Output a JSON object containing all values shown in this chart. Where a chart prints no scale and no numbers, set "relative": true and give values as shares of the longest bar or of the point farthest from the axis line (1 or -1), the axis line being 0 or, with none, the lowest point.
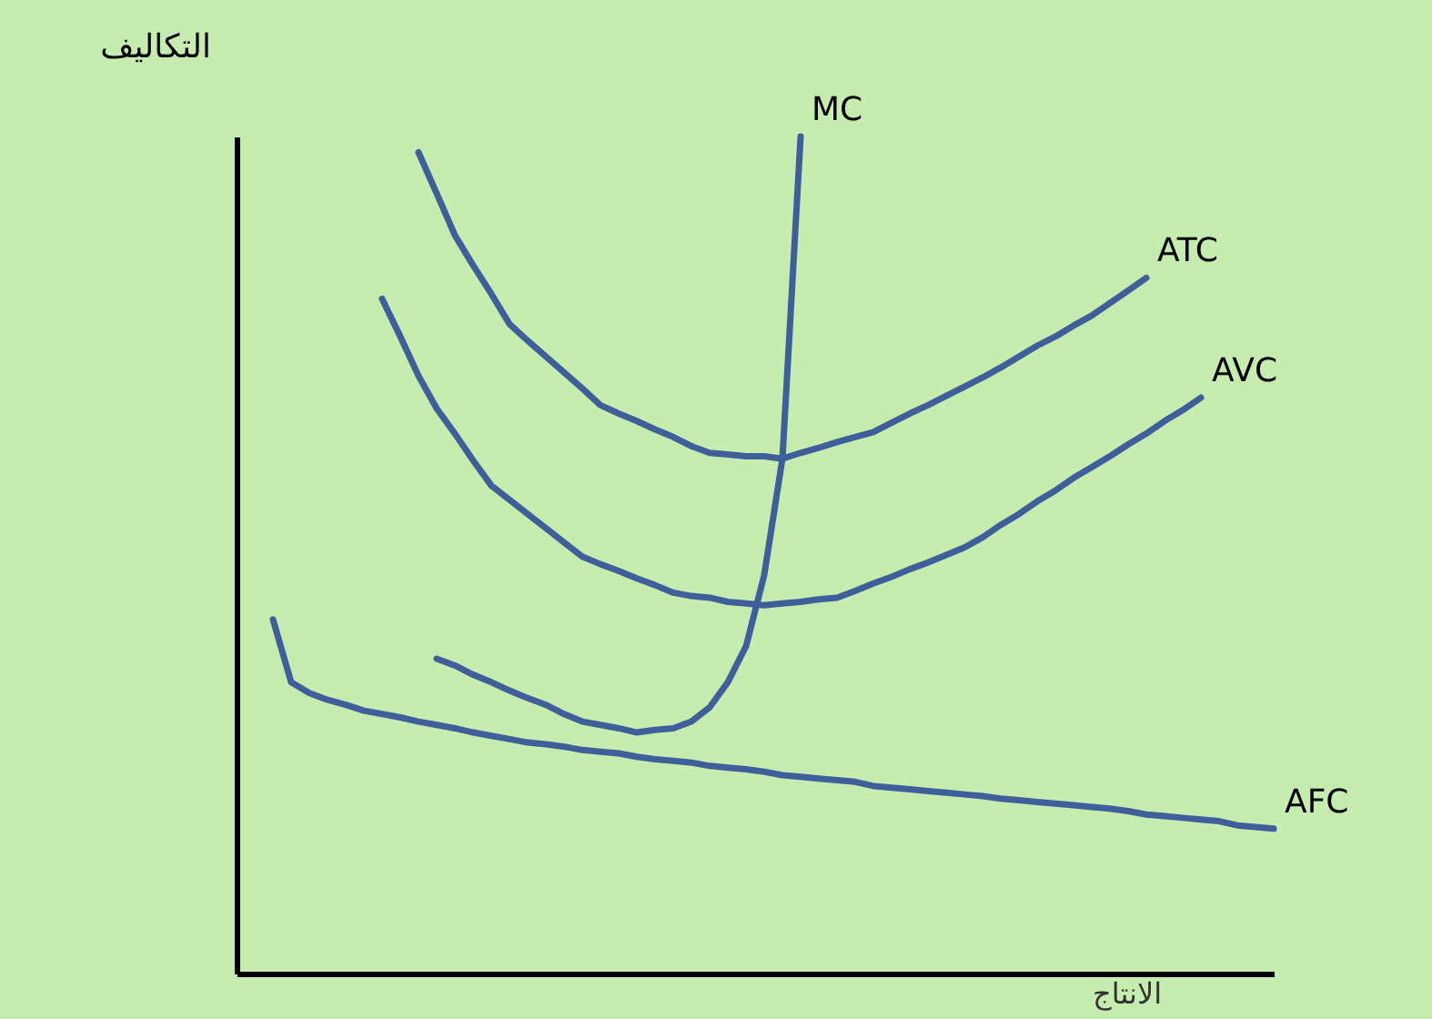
{
  "chart_data": {
    "type": "line",
    "relative": true,
    "xlabel": "الانتاج",
    "ylabel": "التكاليف",
    "legend": false,
    "grid": false,
    "marker": "none",
    "line_style": "solid",
    "categories": [
      null,
      null,
      null,
      null,
      null,
      null,
      null,
      null,
      null,
      null,
      null,
      null,
      null,
      null,
      null,
      null,
      null,
      null,
      null,
      null,
      null,
      null,
      null,
      null,
      null,
      null,
      null,
      null,
      null,
      null,
      null,
      null,
      null,
      null,
      null,
      null,
      null,
      null,
      null,
      null,
      null,
      null,
      null,
      null,
      null,
      null,
      null,
      null,
      null,
      null,
      null,
      null,
      null,
      null,
      null,
      null,
      null,
      null
    ],
    "series": [
      {
        "name": "MC",
        "color": "#3f5f9a",
        "values": [
          null,
          null,
          null,
          null,
          null,
          null,
          null,
          null,
          null,
          null,
          null,
          0.376,
          0.368,
          0.357,
          0.348,
          0.338,
          0.329,
          0.321,
          0.31,
          0.301,
          0.297,
          0.293,
          0.288,
          0.291,
          0.293,
          0.301,
          0.318,
          0.348,
          0.391,
          0.476,
          0.615,
          1.0,
          null,
          null,
          null,
          null,
          null,
          null,
          null,
          null,
          null,
          null,
          null,
          null,
          null,
          null,
          null,
          null,
          null,
          null,
          null,
          null,
          null,
          null,
          null,
          null,
          null,
          null
        ]
      },
      {
        "name": "ATC",
        "color": "#3f5f9a",
        "values": [
          null,
          null,
          null,
          null,
          null,
          null,
          null,
          null,
          null,
          null,
          0.981,
          0.932,
          0.882,
          0.846,
          0.812,
          0.776,
          0.756,
          0.737,
          0.718,
          0.699,
          0.679,
          0.669,
          0.66,
          0.65,
          0.641,
          0.63,
          0.622,
          0.62,
          0.618,
          0.618,
          0.615,
          0.622,
          0.628,
          0.635,
          0.641,
          0.647,
          0.658,
          0.669,
          0.679,
          0.69,
          0.701,
          0.712,
          0.724,
          0.737,
          0.75,
          0.761,
          0.774,
          0.786,
          0.801,
          0.816,
          0.831,
          null,
          null,
          null,
          null,
          null,
          null,
          null
        ]
      },
      {
        "name": "AVC",
        "color": "#3f5f9a",
        "values": [
          null,
          null,
          null,
          null,
          null,
          null,
          null,
          null,
          0.806,
          0.761,
          0.714,
          0.675,
          0.645,
          0.613,
          0.583,
          0.566,
          0.549,
          0.532,
          0.515,
          0.498,
          0.489,
          0.481,
          0.472,
          0.464,
          0.455,
          0.451,
          0.449,
          0.444,
          0.442,
          0.44,
          0.442,
          0.444,
          0.447,
          0.449,
          0.457,
          0.466,
          0.474,
          0.483,
          0.491,
          0.5,
          0.509,
          0.521,
          0.536,
          0.549,
          0.564,
          0.577,
          0.592,
          0.605,
          0.618,
          0.632,
          0.645,
          0.66,
          0.673,
          0.688,
          null,
          null,
          null,
          null
        ]
      },
      {
        "name": "AFC",
        "color": "#3f5f9a",
        "values": [
          null,
          null,
          0.423,
          0.348,
          0.335,
          0.327,
          0.321,
          0.314,
          0.31,
          0.306,
          0.301,
          0.297,
          0.293,
          0.288,
          0.284,
          0.28,
          0.276,
          0.274,
          0.271,
          0.267,
          0.265,
          0.263,
          0.259,
          0.256,
          0.254,
          0.252,
          0.248,
          0.246,
          0.244,
          0.241,
          0.237,
          0.235,
          0.233,
          0.231,
          0.229,
          0.224,
          0.222,
          0.22,
          0.218,
          0.216,
          0.214,
          0.212,
          0.209,
          0.207,
          0.205,
          0.203,
          0.201,
          0.199,
          0.197,
          0.194,
          0.19,
          0.188,
          0.186,
          0.184,
          0.182,
          0.177,
          0.175,
          0.173
        ]
      }
    ]
  }
}
